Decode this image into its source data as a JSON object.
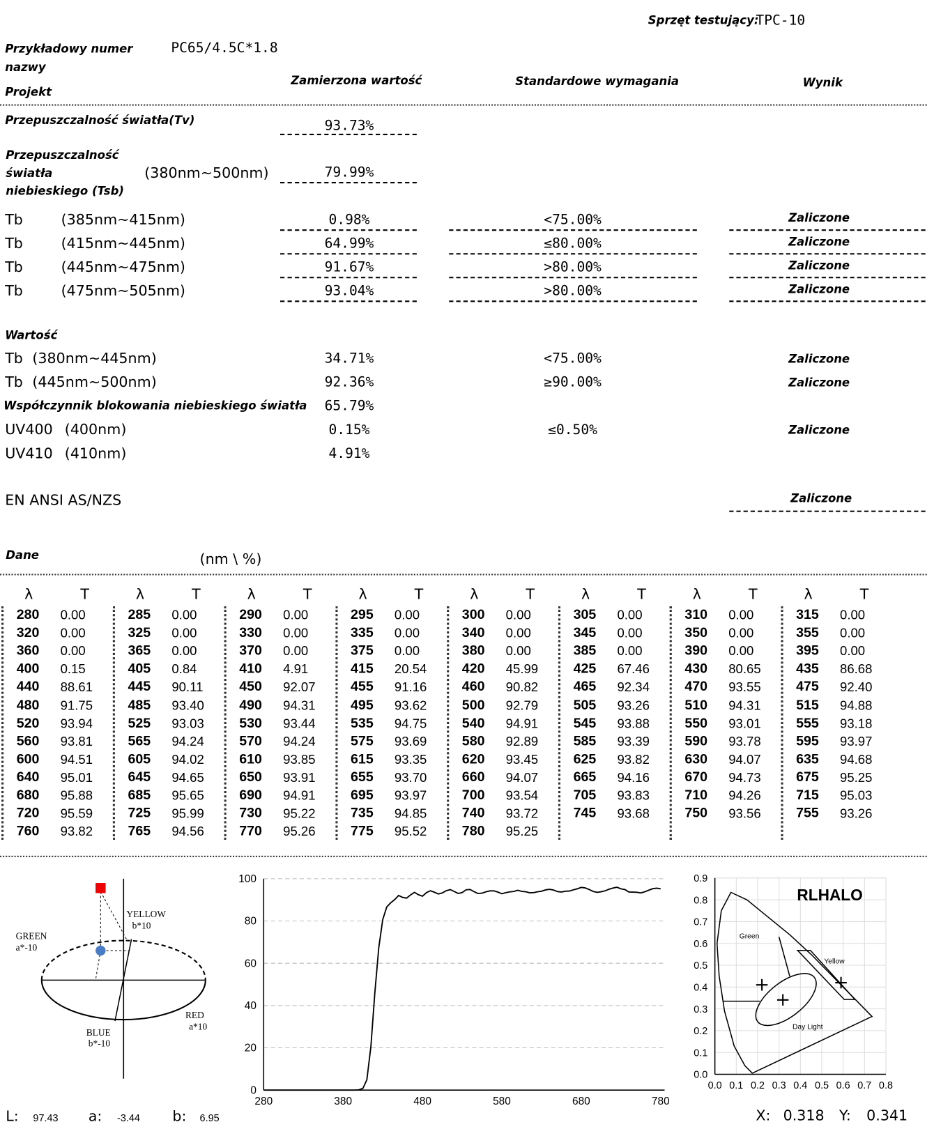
{
  "header": {
    "equipment_label": "Sprzęt testujący:",
    "equipment": "TPC-10"
  },
  "sample": {
    "label": "Przykładowy numer nazwy",
    "value": "PC65/4.5C*1.8"
  },
  "columns": {
    "project": "Projekt",
    "measured": "Zamierzona wartość",
    "standard": "Standardowe wymagania",
    "result": "Wynik"
  },
  "tv": {
    "label": "Przepuszczalność światła(Tv)",
    "measured": "93.73%"
  },
  "tsb": {
    "label": "Przepuszczalność światła niebieskiego (Tsb)",
    "range": "(380nm~500nm)",
    "measured": "79.99%"
  },
  "tb_rows": [
    {
      "label": "Tb",
      "range": "(385nm~415nm)",
      "measured": "0.98%",
      "standard": "<75.00%",
      "result": "Zaliczone"
    },
    {
      "label": "Tb",
      "range": "(415nm~445nm)",
      "measured": "64.99%",
      "standard": "≤80.00%",
      "result": "Zaliczone"
    },
    {
      "label": "Tb",
      "range": "(445nm~475nm)",
      "measured": "91.67%",
      "standard": ">80.00%",
      "result": "Zaliczone"
    },
    {
      "label": "Tb",
      "range": "(475nm~505nm)",
      "measured": "93.04%",
      "standard": ">80.00%",
      "result": "Zaliczone"
    }
  ],
  "values_section": {
    "title": "Wartość",
    "rows": [
      {
        "label": "Tb",
        "range": "(380nm~445nm)",
        "measured": "34.71%",
        "standard": "<75.00%",
        "result": "Zaliczone"
      },
      {
        "label": "Tb",
        "range": "(445nm~500nm)",
        "measured": "92.36%",
        "standard": "≥90.00%",
        "result": "Zaliczone"
      },
      {
        "label": "Współczynnik blokowania niebieskiego światła",
        "measured": "65.79%"
      },
      {
        "label": "UV400",
        "range": "(400nm)",
        "measured": "0.15%",
        "standard": "≤0.50%",
        "result": "Zaliczone"
      },
      {
        "label": "UV410",
        "range": "(410nm)",
        "measured": "4.91%"
      }
    ]
  },
  "standard_compliance": {
    "label": "EN ANSI AS/NZS",
    "result": "Zaliczone"
  },
  "data_table": {
    "label": "Dane",
    "unit": "(nm \\ %)",
    "header": [
      "λ",
      "T"
    ],
    "rows": [
      [
        [
          "280",
          "0.00"
        ],
        [
          "285",
          "0.00"
        ],
        [
          "290",
          "0.00"
        ],
        [
          "295",
          "0.00"
        ],
        [
          "300",
          "0.00"
        ],
        [
          "305",
          "0.00"
        ],
        [
          "310",
          "0.00"
        ],
        [
          "315",
          "0.00"
        ]
      ],
      [
        [
          "320",
          "0.00"
        ],
        [
          "325",
          "0.00"
        ],
        [
          "330",
          "0.00"
        ],
        [
          "335",
          "0.00"
        ],
        [
          "340",
          "0.00"
        ],
        [
          "345",
          "0.00"
        ],
        [
          "350",
          "0.00"
        ],
        [
          "355",
          "0.00"
        ]
      ],
      [
        [
          "360",
          "0.00"
        ],
        [
          "365",
          "0.00"
        ],
        [
          "370",
          "0.00"
        ],
        [
          "375",
          "0.00"
        ],
        [
          "380",
          "0.00"
        ],
        [
          "385",
          "0.00"
        ],
        [
          "390",
          "0.00"
        ],
        [
          "395",
          "0.00"
        ]
      ],
      [
        [
          "400",
          "0.15"
        ],
        [
          "405",
          "0.84"
        ],
        [
          "410",
          "4.91"
        ],
        [
          "415",
          "20.54"
        ],
        [
          "420",
          "45.99"
        ],
        [
          "425",
          "67.46"
        ],
        [
          "430",
          "80.65"
        ],
        [
          "435",
          "86.68"
        ]
      ],
      [
        [
          "440",
          "88.61"
        ],
        [
          "445",
          "90.11"
        ],
        [
          "450",
          "92.07"
        ],
        [
          "455",
          "91.16"
        ],
        [
          "460",
          "90.82"
        ],
        [
          "465",
          "92.34"
        ],
        [
          "470",
          "93.55"
        ],
        [
          "475",
          "92.40"
        ]
      ],
      [
        [
          "480",
          "91.75"
        ],
        [
          "485",
          "93.40"
        ],
        [
          "490",
          "94.31"
        ],
        [
          "495",
          "93.62"
        ],
        [
          "500",
          "92.79"
        ],
        [
          "505",
          "93.26"
        ],
        [
          "510",
          "94.31"
        ],
        [
          "515",
          "94.88"
        ]
      ],
      [
        [
          "520",
          "93.94"
        ],
        [
          "525",
          "93.03"
        ],
        [
          "530",
          "93.44"
        ],
        [
          "535",
          "94.75"
        ],
        [
          "540",
          "94.91"
        ],
        [
          "545",
          "93.88"
        ],
        [
          "550",
          "93.01"
        ],
        [
          "555",
          "93.18"
        ]
      ],
      [
        [
          "560",
          "93.81"
        ],
        [
          "565",
          "94.24"
        ],
        [
          "570",
          "94.24"
        ],
        [
          "575",
          "93.69"
        ],
        [
          "580",
          "92.89"
        ],
        [
          "585",
          "93.39"
        ],
        [
          "590",
          "93.78"
        ],
        [
          "595",
          "93.97"
        ]
      ],
      [
        [
          "600",
          "94.51"
        ],
        [
          "605",
          "94.02"
        ],
        [
          "610",
          "93.85"
        ],
        [
          "615",
          "93.35"
        ],
        [
          "620",
          "93.45"
        ],
        [
          "625",
          "93.82"
        ],
        [
          "630",
          "94.07"
        ],
        [
          "635",
          "94.68"
        ]
      ],
      [
        [
          "640",
          "95.01"
        ],
        [
          "645",
          "94.65"
        ],
        [
          "650",
          "93.91"
        ],
        [
          "655",
          "93.70"
        ],
        [
          "660",
          "94.07"
        ],
        [
          "665",
          "94.16"
        ],
        [
          "670",
          "94.73"
        ],
        [
          "675",
          "95.25"
        ]
      ],
      [
        [
          "680",
          "95.88"
        ],
        [
          "685",
          "95.65"
        ],
        [
          "690",
          "94.91"
        ],
        [
          "695",
          "93.97"
        ],
        [
          "700",
          "93.54"
        ],
        [
          "705",
          "93.83"
        ],
        [
          "710",
          "94.26"
        ],
        [
          "715",
          "95.03"
        ]
      ],
      [
        [
          "720",
          "95.59"
        ],
        [
          "725",
          "95.99"
        ],
        [
          "730",
          "95.22"
        ],
        [
          "735",
          "94.85"
        ],
        [
          "740",
          "93.72"
        ],
        [
          "745",
          "93.68"
        ],
        [
          "750",
          "93.56"
        ],
        [
          "755",
          "93.26"
        ]
      ],
      [
        [
          "760",
          "93.82"
        ],
        [
          "765",
          "94.56"
        ],
        [
          "770",
          "95.26"
        ],
        [
          "775",
          "95.52"
        ],
        [
          "780",
          "95.25"
        ]
      ]
    ]
  },
  "lab": {
    "yellow": "YELLOW",
    "yellow_axis": "b*10",
    "green": "GREEN",
    "green_axis": "a*-10",
    "red": "RED",
    "red_axis": "a*10",
    "blue": "BLUE",
    "blue_axis": "b*-10",
    "L_label": "L:",
    "L": 97.43,
    "a_label": "a:",
    "a": -3.44,
    "b_label": "b:",
    "b": 6.95
  },
  "chart_data": [
    {
      "type": "line",
      "color": "#000000",
      "grid": true,
      "x": [
        280,
        285,
        290,
        295,
        300,
        305,
        310,
        315,
        320,
        325,
        330,
        335,
        340,
        345,
        350,
        355,
        360,
        365,
        370,
        375,
        380,
        385,
        390,
        395,
        400,
        405,
        410,
        415,
        420,
        425,
        430,
        435,
        440,
        445,
        450,
        455,
        460,
        465,
        470,
        475,
        480,
        485,
        490,
        495,
        500,
        505,
        510,
        515,
        520,
        525,
        530,
        535,
        540,
        545,
        550,
        555,
        560,
        565,
        570,
        575,
        580,
        585,
        590,
        595,
        600,
        605,
        610,
        615,
        620,
        625,
        630,
        635,
        640,
        645,
        650,
        655,
        660,
        665,
        670,
        675,
        680,
        685,
        690,
        695,
        700,
        705,
        710,
        715,
        720,
        725,
        730,
        735,
        740,
        745,
        750,
        755,
        760,
        765,
        770,
        775,
        780
      ],
      "values": [
        0,
        0,
        0,
        0,
        0,
        0,
        0,
        0,
        0,
        0,
        0,
        0,
        0,
        0,
        0,
        0,
        0,
        0,
        0,
        0,
        0,
        0,
        0,
        0,
        0.15,
        0.84,
        4.91,
        20.54,
        45.99,
        67.46,
        80.65,
        86.68,
        88.61,
        90.11,
        92.07,
        91.16,
        90.82,
        92.34,
        93.55,
        92.4,
        91.75,
        93.4,
        94.31,
        93.62,
        92.79,
        93.26,
        94.31,
        94.88,
        93.94,
        93.03,
        93.44,
        94.75,
        94.91,
        93.88,
        93.01,
        93.18,
        93.81,
        94.24,
        94.24,
        93.69,
        92.89,
        93.39,
        93.78,
        93.97,
        94.51,
        94.02,
        93.85,
        93.35,
        93.45,
        93.82,
        94.07,
        94.68,
        95.01,
        94.65,
        93.91,
        93.7,
        94.07,
        94.16,
        94.73,
        95.25,
        95.88,
        95.65,
        94.91,
        93.97,
        93.54,
        93.83,
        94.26,
        95.03,
        95.59,
        95.99,
        95.22,
        94.85,
        93.72,
        93.68,
        93.56,
        93.26,
        93.82,
        94.56,
        95.26,
        95.52,
        95.25
      ],
      "xlim": [
        280,
        785
      ],
      "xticks": [
        280,
        380,
        480,
        580,
        680,
        780
      ],
      "ylim": [
        0,
        100
      ],
      "yticks": [
        0,
        20,
        40,
        60,
        80,
        100
      ]
    },
    {
      "type": "scatter",
      "title": "RLHALO",
      "color": "#000000",
      "grid": true,
      "x": [
        0.22,
        0.318,
        0.59
      ],
      "y": [
        0.41,
        0.341,
        0.42
      ],
      "annotations": [
        "Green",
        "Yellow",
        "Day Light"
      ],
      "xlim": [
        0,
        0.8
      ],
      "xticks": [
        {
          "value": 0,
          "label": "0.0"
        },
        0.1,
        0.2,
        0.3,
        0.4,
        0.5,
        0.6,
        0.7,
        0.8
      ],
      "ylim": [
        0,
        0.9
      ],
      "yticks": [
        {
          "value": 0,
          "label": "0.0"
        },
        0.1,
        0.2,
        0.3,
        0.4,
        0.5,
        0.6,
        0.7,
        0.8,
        0.9
      ],
      "readout": {
        "x_label": "X:",
        "x": 0.318,
        "y_label": "Y:",
        "y": 0.341
      }
    }
  ]
}
